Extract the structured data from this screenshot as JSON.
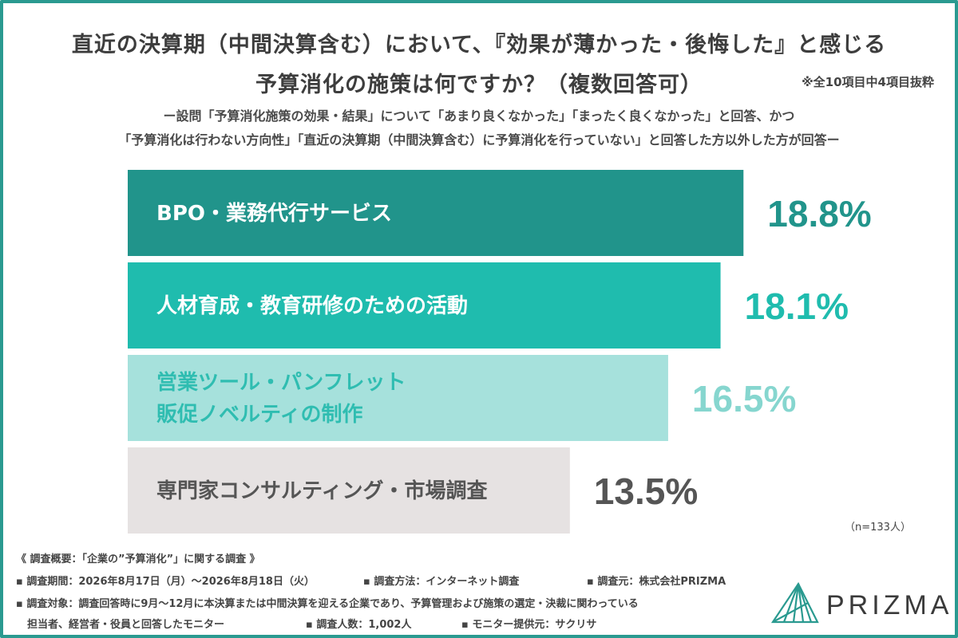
{
  "title": {
    "line1": "直近の決算期（中間決算含む）において、『効果が薄かった・後悔した』と感じる",
    "line2": "予算消化の施策は何ですか？（複数回答可）",
    "note": "※全10項目中4項目抜粋"
  },
  "subtitle": {
    "line1": "ー設問「予算消化施策の効果・結果」について「あまり良くなかった」「まったく良くなかった」と回答、かつ",
    "line2": "「予算消化は行わない方向性」「直近の決算期（中間決算含む）に予算消化を行っていない」と回答した方以外した方が回答ー"
  },
  "chart_data": {
    "type": "bar",
    "orientation": "horizontal",
    "categories": [
      "BPO・業務代行サービス",
      "人材育成・教育研修のための活動",
      "営業ツール・パンフレット\n販促ノベルティの制作",
      "専門家コンサルティング・市場調査"
    ],
    "values": [
      18.8,
      18.1,
      16.5,
      13.5
    ],
    "value_labels": [
      "18.8%",
      "18.1%",
      "16.5%",
      "13.5%"
    ],
    "bar_colors": [
      "#21948b",
      "#1fbcae",
      "#a6e1dc",
      "#e6e2e2"
    ],
    "label_colors": [
      "#ffffff",
      "#ffffff",
      "#2fbdb1",
      "#555555"
    ],
    "value_colors": [
      "#21948b",
      "#1fbcae",
      "#86d6cf",
      "#555555"
    ],
    "xlim": [
      0,
      19.5
    ],
    "n_note": "（n=133人）"
  },
  "footer": {
    "heading": "《 調査概要：「企業の”予算消化”」に関する調査 》",
    "period": "▪ 調査期間：2026年8月17日（月）〜2026年8月18日（火）",
    "method": "▪ 調査方法：インターネット調査",
    "source": "▪ 調査元：株式会社PRIZMA",
    "target1": "▪ 調査対象：調査回答時に9月〜12月に本決算または中間決算を迎える企業であり、予算管理および施策の選定・決裁に関わっている",
    "target2": "担当者、経営者・役員と回答したモニター",
    "count": "▪ 調査人数：1,002人",
    "provider": "▪ モニター提供元：サクリサ"
  },
  "logo": {
    "text": "PRIZMA",
    "icon": "prizma-logo-icon",
    "color": "#2a9a90"
  }
}
